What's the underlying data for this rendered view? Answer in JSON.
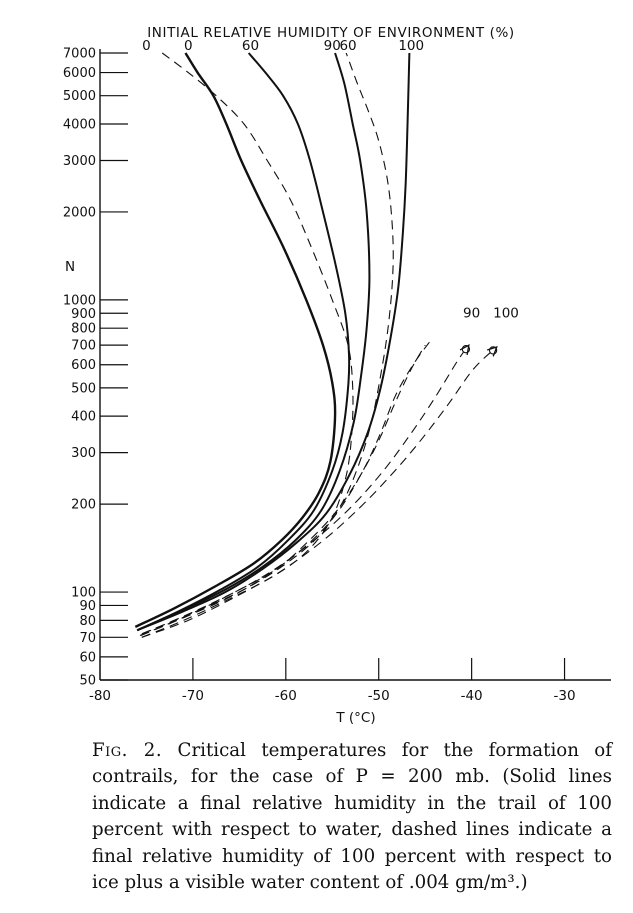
{
  "chart_data": {
    "type": "line",
    "title": "INITIAL RELATIVE HUMIDITY OF ENVIRONMENT (%)",
    "xlabel": "T (°C)",
    "ylabel": "N",
    "x_scale": "linear",
    "y_scale": "log",
    "xlim": [
      -80,
      -25
    ],
    "ylim": [
      50,
      7000
    ],
    "x_ticks": [
      -80,
      -70,
      -60,
      -50,
      -40,
      -30
    ],
    "x_tick_labels": [
      "-80",
      "-70",
      "-60",
      "-50",
      "-40",
      "-30"
    ],
    "y_ticks": [
      50,
      60,
      70,
      80,
      90,
      100,
      200,
      300,
      400,
      500,
      600,
      700,
      800,
      900,
      1000,
      2000,
      3000,
      4000,
      5000,
      6000,
      7000
    ],
    "y_tick_labels": [
      "50",
      "60",
      "70",
      "80",
      "90",
      "100",
      "200",
      "300",
      "400",
      "500",
      "600",
      "700",
      "800",
      "900",
      "1000",
      "2000",
      "3000",
      "4000",
      "5000",
      "6000",
      "7000"
    ],
    "grid": false,
    "series": [
      {
        "name": "0",
        "style": "solid",
        "color": "#111111",
        "points": [
          [
            -76.2,
            76
          ],
          [
            -72,
            88
          ],
          [
            -67.5,
            105
          ],
          [
            -63.5,
            125
          ],
          [
            -60.5,
            150
          ],
          [
            -58.2,
            180
          ],
          [
            -56.4,
            220
          ],
          [
            -55.2,
            280
          ],
          [
            -54.7,
            400
          ],
          [
            -55,
            520
          ],
          [
            -56,
            700
          ],
          [
            -57.8,
            1000
          ],
          [
            -60.2,
            1500
          ],
          [
            -62.8,
            2200
          ],
          [
            -64.8,
            3000
          ],
          [
            -66.4,
            4000
          ],
          [
            -67.8,
            5000
          ],
          [
            -69.5,
            6000
          ],
          [
            -70.8,
            7000
          ]
        ]
      },
      {
        "name": "0",
        "style": "dashed",
        "color": "#111111",
        "points": [
          [
            -75.5,
            70
          ],
          [
            -71,
            80
          ],
          [
            -66,
            95
          ],
          [
            -61,
            115
          ],
          [
            -57.5,
            140
          ],
          [
            -55,
            180
          ],
          [
            -53.5,
            250
          ],
          [
            -52.9,
            350
          ],
          [
            -52.8,
            500
          ],
          [
            -53.3,
            700
          ],
          [
            -55,
            1000
          ],
          [
            -57.2,
            1500
          ],
          [
            -59.5,
            2200
          ],
          [
            -62,
            3000
          ],
          [
            -64.5,
            4000
          ],
          [
            -67.5,
            5000
          ],
          [
            -70.5,
            6000
          ],
          [
            -73.3,
            7000
          ]
        ]
      },
      {
        "name": "60",
        "style": "solid",
        "color": "#111111",
        "points": [
          [
            -76,
            74
          ],
          [
            -71.5,
            86
          ],
          [
            -67,
            102
          ],
          [
            -63,
            122
          ],
          [
            -59.8,
            150
          ],
          [
            -57,
            190
          ],
          [
            -55,
            260
          ],
          [
            -53.9,
            350
          ],
          [
            -53.3,
            500
          ],
          [
            -53.2,
            650
          ],
          [
            -53.6,
            900
          ],
          [
            -54.6,
            1300
          ],
          [
            -56,
            2000
          ],
          [
            -57.4,
            3000
          ],
          [
            -58.7,
            4000
          ],
          [
            -60.3,
            5000
          ],
          [
            -62.2,
            6000
          ],
          [
            -64,
            7000
          ]
        ]
      },
      {
        "name": "60",
        "style": "dashed",
        "color": "#111111",
        "points": [
          [
            -75.5,
            72
          ],
          [
            -70,
            85
          ],
          [
            -64.5,
            102
          ],
          [
            -60,
            125
          ],
          [
            -56.5,
            155
          ],
          [
            -54,
            200
          ],
          [
            -52.2,
            270
          ],
          [
            -50.8,
            380
          ],
          [
            -49.8,
            550
          ],
          [
            -49,
            800
          ],
          [
            -48.5,
            1200
          ],
          [
            -48.5,
            1700
          ],
          [
            -49,
            2500
          ],
          [
            -50,
            3500
          ],
          [
            -51.2,
            4500
          ],
          [
            -52.3,
            5500
          ],
          [
            -53.5,
            7000
          ]
        ]
      },
      {
        "name": "90",
        "style": "solid",
        "color": "#111111",
        "points": [
          [
            -76,
            74
          ],
          [
            -71,
            87
          ],
          [
            -66.5,
            102
          ],
          [
            -62.5,
            122
          ],
          [
            -59,
            150
          ],
          [
            -56.2,
            190
          ],
          [
            -54.2,
            260
          ],
          [
            -52.7,
            380
          ],
          [
            -51.9,
            550
          ],
          [
            -51.3,
            800
          ],
          [
            -51,
            1200
          ],
          [
            -51.3,
            2000
          ],
          [
            -52,
            3000
          ],
          [
            -52.8,
            4000
          ],
          [
            -53.7,
            5500
          ],
          [
            -54.7,
            7000
          ]
        ]
      },
      {
        "name": "100",
        "style": "solid",
        "color": "#111111",
        "points": [
          [
            -76,
            74
          ],
          [
            -71,
            86
          ],
          [
            -66.5,
            100
          ],
          [
            -62.5,
            120
          ],
          [
            -58.8,
            148
          ],
          [
            -55.7,
            185
          ],
          [
            -53.2,
            250
          ],
          [
            -51.2,
            350
          ],
          [
            -49.8,
            500
          ],
          [
            -48.7,
            750
          ],
          [
            -47.9,
            1100
          ],
          [
            -47.4,
            1700
          ],
          [
            -47.1,
            2500
          ],
          [
            -46.9,
            4000
          ],
          [
            -46.7,
            7000
          ]
        ]
      },
      {
        "name": "90",
        "style": "dashed",
        "color": "#111111",
        "end_marker": "arrow-circle",
        "points": [
          [
            -75.7,
            71
          ],
          [
            -71,
            82
          ],
          [
            -66,
            98
          ],
          [
            -61.5,
            118
          ],
          [
            -57,
            150
          ],
          [
            -53,
            195
          ],
          [
            -49.5,
            260
          ],
          [
            -46.5,
            350
          ],
          [
            -44,
            460
          ],
          [
            -41.5,
            620
          ],
          [
            -40.3,
            700
          ]
        ]
      },
      {
        "name": "100",
        "style": "dashed",
        "color": "#111111",
        "end_marker": "arrow-circle",
        "points": [
          [
            -75.5,
            70
          ],
          [
            -70.5,
            80
          ],
          [
            -65.5,
            96
          ],
          [
            -60.5,
            118
          ],
          [
            -56,
            150
          ],
          [
            -52,
            195
          ],
          [
            -48.5,
            255
          ],
          [
            -45.5,
            330
          ],
          [
            -42.5,
            440
          ],
          [
            -39.8,
            580
          ],
          [
            -37.3,
            690
          ]
        ]
      },
      {
        "name": "",
        "style": "dashed",
        "color": "#111111",
        "points": [
          [
            -75.4,
            72
          ],
          [
            -70.5,
            84
          ],
          [
            -65.5,
            100
          ],
          [
            -61,
            120
          ],
          [
            -57.5,
            150
          ],
          [
            -54.5,
            190
          ],
          [
            -52,
            250
          ],
          [
            -50,
            330
          ],
          [
            -48.3,
            440
          ],
          [
            -46.5,
            580
          ],
          [
            -45,
            700
          ]
        ]
      },
      {
        "name": "",
        "style": "dashed",
        "color": "#111111",
        "points": [
          [
            -75.6,
            71
          ],
          [
            -70.5,
            83
          ],
          [
            -65.5,
            98
          ],
          [
            -61,
            120
          ],
          [
            -57.2,
            150
          ],
          [
            -54.3,
            190
          ],
          [
            -51.7,
            260
          ],
          [
            -49.8,
            350
          ],
          [
            -48.2,
            470
          ],
          [
            -46.3,
            600
          ],
          [
            -44.5,
            720
          ]
        ]
      }
    ],
    "legend": {
      "position": "top",
      "labels": [
        "0",
        "0",
        "60",
        "90",
        "60",
        "100"
      ],
      "label_x": [
        -75,
        -70.5,
        -63.8,
        -55,
        -53.3,
        -46.5
      ]
    },
    "annotations": [
      {
        "text": "90",
        "x": -40,
        "y": 900
      },
      {
        "text": "100",
        "x": -36.3,
        "y": 900
      }
    ]
  },
  "caption": {
    "label": "Fig. 2.",
    "text": "Critical temperatures for the formation of contrails, for the case of P = 200 mb. (Solid lines indicate a final relative humidity in the trail of 100 percent with respect to water, dashed lines indicate a final relative humidity of 100 percent with respect to ice plus a visible water content of .004 gm/m³.)"
  }
}
